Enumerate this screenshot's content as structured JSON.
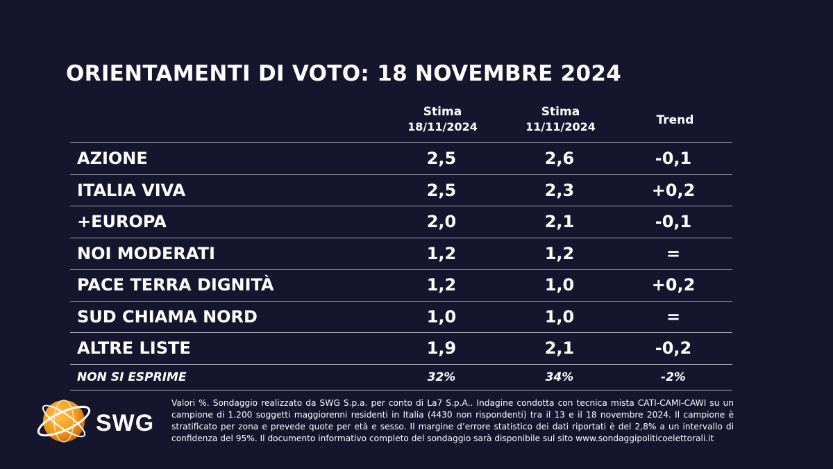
{
  "title": "ORIENTAMENTI DI VOTO: 18 NOVEMBRE 2024",
  "columns": {
    "stima1": {
      "line1": "Stima",
      "line2": "18/11/2024"
    },
    "stima2": {
      "line1": "Stima",
      "line2": "11/11/2024"
    },
    "trend": "Trend"
  },
  "rows": [
    {
      "name": "AZIONE",
      "v1": "2,5",
      "v2": "2,6",
      "trend": "-0,1"
    },
    {
      "name": "ITALIA VIVA",
      "v1": "2,5",
      "v2": "2,3",
      "trend": "+0,2"
    },
    {
      "name": "+EUROPA",
      "v1": "2,0",
      "v2": "2,1",
      "trend": "-0,1"
    },
    {
      "name": "NOI MODERATI",
      "v1": "1,2",
      "v2": "1,2",
      "trend": "="
    },
    {
      "name": "PACE TERRA DIGNITÀ",
      "v1": "1,2",
      "v2": "1,0",
      "trend": "+0,2"
    },
    {
      "name": "SUD CHIAMA NORD",
      "v1": "1,0",
      "v2": "1,0",
      "trend": "="
    },
    {
      "name": "ALTRE LISTE",
      "v1": "1,9",
      "v2": "2,1",
      "trend": "-0,2"
    }
  ],
  "non_si_esprime": {
    "name": "NON SI ESPRIME",
    "v1": "32%",
    "v2": "34%",
    "trend": "-2%"
  },
  "logo": {
    "text": "SWG",
    "icon": "swg-globe-logo"
  },
  "footnote": "Valori %. Sondaggio realizzato da SWG S.p.a. per conto di La7 S.p.A.. Indagine condotta con tecnica mista CATI-CAMI-CAWI su un campione di 1.200 soggetti maggiorenni residenti in Italia (4430 non rispondenti) tra il 13 e il 18 novembre 2024. Il campione è stratificato per zona e prevede quote per età e sesso. Il margine d’errore statistico dei dati riportati è del 2,8% a un intervallo di confidenza del 95%. Il documento informativo completo del sondaggio sarà disponibile sul sito www.sondaggipoliticoelettorali.it",
  "colors": {
    "background": "#15162e",
    "text": "#ffffff",
    "rule": "#a8aab8",
    "logo_orange": "#f39a1e"
  }
}
